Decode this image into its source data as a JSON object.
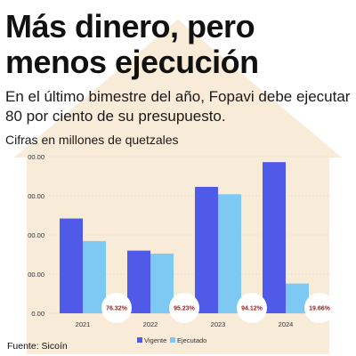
{
  "page": {
    "title": "Más dinero, pero menos ejecución",
    "subtitle": "En el último bimestre del año, Fopavi debe ejecutar 80 por ciento de su presupuesto.",
    "units_note": "Cifras en millones de quetzales",
    "source": "Fuente: Sicoín"
  },
  "colors": {
    "house": "#f8ebd8",
    "vigente": "#4f5be8",
    "ejecutado": "#7ec8f4",
    "pct_text": "#9b1c1c",
    "grid": "#d6d1c8"
  },
  "chart_data": {
    "type": "bar",
    "categories": [
      "2021",
      "2022",
      "2023",
      "2024"
    ],
    "series": [
      {
        "name": "Vigente",
        "values": [
          605,
          400,
          807,
          965
        ]
      },
      {
        "name": "Ejecutado",
        "values": [
          461,
          381,
          760,
          190
        ]
      }
    ],
    "ytick_labels": [
      "0.00",
      "00.00",
      "00.00",
      "00.00",
      "00.00"
    ],
    "ylim": [
      0,
      1000
    ],
    "annotations": [
      "76.32%",
      "95.23%",
      "94.12%",
      "19.66%"
    ],
    "legend": [
      "Vigente",
      "Ejecutado"
    ],
    "legend_position": "bottom-right",
    "grid": true
  }
}
